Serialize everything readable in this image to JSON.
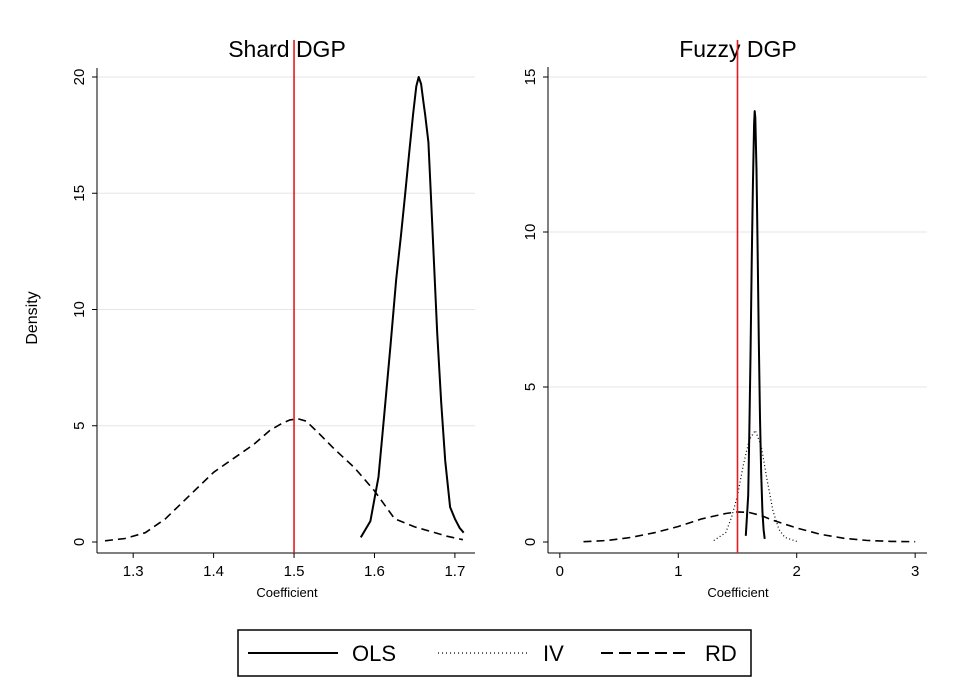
{
  "colors": {
    "reference_line": "#e8191d",
    "series": "#000000",
    "grid": "#e6e6e6"
  },
  "figure": {
    "ylabel": "Density"
  },
  "legend": {
    "placement": "bottom",
    "entries": [
      {
        "label": "OLS",
        "style": "solid"
      },
      {
        "label": "IV",
        "style": "dotted"
      },
      {
        "label": "RD",
        "style": "dashed"
      }
    ]
  },
  "chart_data": [
    {
      "type": "line",
      "title": "Shard DGP",
      "xlabel": "Coefficient",
      "ylabel": "Density",
      "xlim": [
        1.255,
        1.725
      ],
      "ylim": [
        0,
        20.5
      ],
      "xticks": [
        1.3,
        1.4,
        1.5,
        1.6,
        1.7
      ],
      "xtick_labels": [
        "1.3",
        "1.4",
        "1.5",
        "1.6",
        "1.7"
      ],
      "yticks": [
        0,
        5,
        10,
        15,
        20
      ],
      "ytick_labels": [
        "0",
        "5",
        "10",
        "15",
        "20"
      ],
      "grid": true,
      "reference_x": 1.5,
      "series": [
        {
          "name": "OLS",
          "style": "solid",
          "x": [
            1.583,
            1.595,
            1.605,
            1.612,
            1.62,
            1.627,
            1.633,
            1.638,
            1.643,
            1.648,
            1.652,
            1.655,
            1.658,
            1.661,
            1.663,
            1.667,
            1.67,
            1.674,
            1.678,
            1.683,
            1.688,
            1.694,
            1.7,
            1.706,
            1.711
          ],
          "y": [
            0.2,
            0.9,
            2.8,
            5.4,
            8.5,
            11.3,
            13.2,
            14.9,
            16.7,
            18.4,
            19.6,
            20.0,
            19.7,
            18.9,
            18.4,
            17.2,
            15.0,
            12.0,
            9.0,
            6.0,
            3.5,
            1.5,
            1.0,
            0.6,
            0.4
          ]
        },
        {
          "name": "RD",
          "style": "dashed",
          "x": [
            1.265,
            1.29,
            1.315,
            1.34,
            1.37,
            1.4,
            1.425,
            1.45,
            1.47,
            1.485,
            1.495,
            1.505,
            1.515,
            1.53,
            1.55,
            1.575,
            1.6,
            1.625,
            1.65,
            1.67,
            1.69,
            1.71
          ],
          "y": [
            0.05,
            0.15,
            0.4,
            1.0,
            2.0,
            3.0,
            3.6,
            4.2,
            4.8,
            5.1,
            5.25,
            5.3,
            5.2,
            4.7,
            4.0,
            3.2,
            2.2,
            1.0,
            0.65,
            0.45,
            0.25,
            0.1
          ]
        }
      ]
    },
    {
      "type": "line",
      "title": "Fuzzy DGP",
      "xlabel": "Coefficient",
      "ylabel": "Density",
      "xlim": [
        -0.1,
        3.1
      ],
      "ylim": [
        0,
        15.3
      ],
      "xticks": [
        0,
        1,
        2,
        3
      ],
      "xtick_labels": [
        "0",
        "1",
        "2",
        "3"
      ],
      "yticks": [
        0,
        5,
        10,
        15
      ],
      "ytick_labels": [
        "0",
        "5",
        "10",
        "15"
      ],
      "grid": true,
      "reference_x": 1.5,
      "series": [
        {
          "name": "OLS",
          "style": "solid",
          "x": [
            1.57,
            1.59,
            1.6,
            1.61,
            1.62,
            1.63,
            1.64,
            1.645,
            1.65,
            1.66,
            1.67,
            1.68,
            1.69,
            1.7,
            1.71,
            1.72,
            1.73
          ],
          "y": [
            0.2,
            1.5,
            3.5,
            6.0,
            9.0,
            11.5,
            13.5,
            13.9,
            13.7,
            12.0,
            9.5,
            6.5,
            4.0,
            2.2,
            1.0,
            0.4,
            0.1
          ]
        },
        {
          "name": "IV",
          "style": "dotted",
          "x": [
            1.3,
            1.4,
            1.45,
            1.5,
            1.55,
            1.6,
            1.65,
            1.7,
            1.75,
            1.8,
            1.85,
            1.9,
            2.0
          ],
          "y": [
            0.05,
            0.3,
            0.8,
            1.5,
            2.5,
            3.3,
            3.6,
            3.1,
            2.0,
            1.0,
            0.4,
            0.15,
            0.02
          ]
        },
        {
          "name": "RD",
          "style": "dashed",
          "x": [
            0.2,
            0.4,
            0.6,
            0.8,
            1.0,
            1.2,
            1.4,
            1.5,
            1.6,
            1.7,
            1.8,
            2.0,
            2.2,
            2.4,
            2.6,
            2.8,
            3.0
          ],
          "y": [
            0.01,
            0.05,
            0.15,
            0.3,
            0.5,
            0.75,
            0.92,
            0.97,
            0.95,
            0.85,
            0.7,
            0.45,
            0.25,
            0.12,
            0.05,
            0.02,
            0.01
          ]
        }
      ]
    }
  ]
}
